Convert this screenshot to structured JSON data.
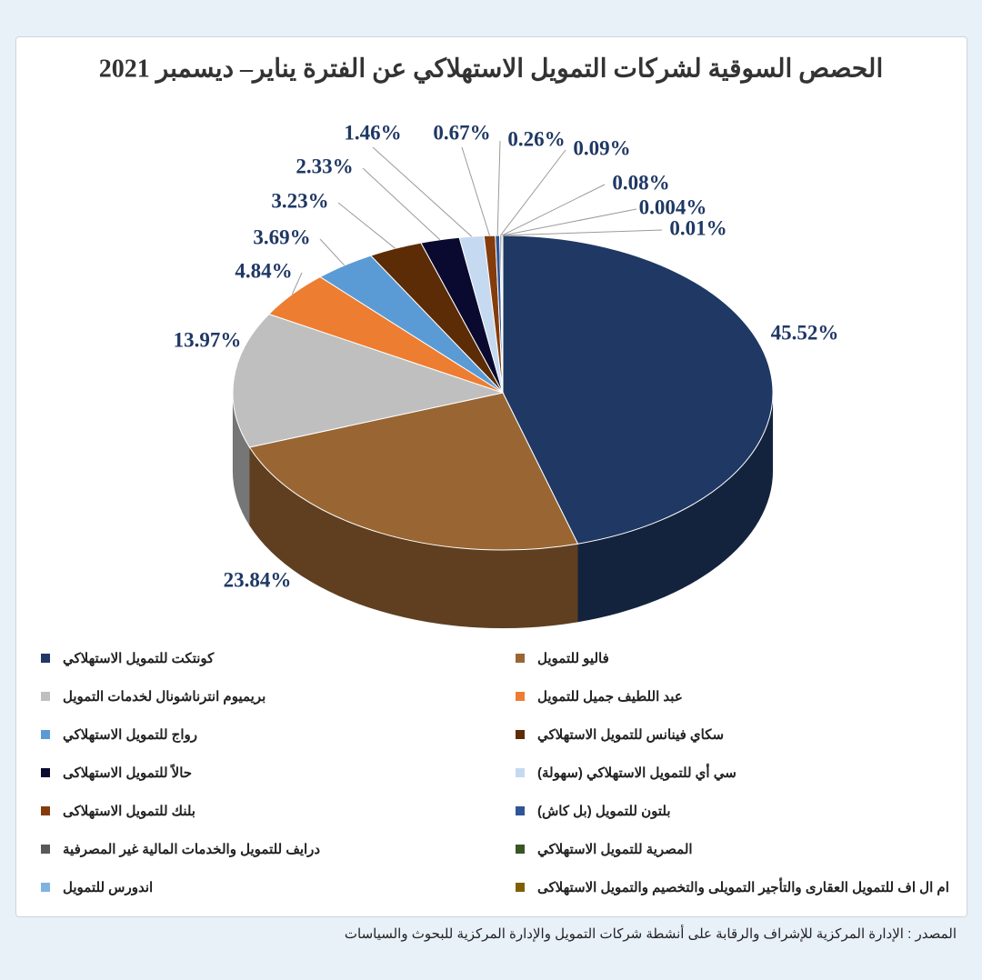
{
  "chart_data": {
    "type": "pie3d",
    "title": "الحصص السوقية لشركات التمويل الاستهلاكي عن الفترة يناير– ديسمبر 2021",
    "categories": [
      "كونتكت للتمويل الاستهلاكي",
      "فاليو للتمويل",
      "بريميوم انترناشونال لخدمات التمويل",
      "عبد اللطيف جميل للتمويل",
      "رواج للتمويل الاستهلاكي",
      "سكاي فينانس للتمويل الاستهلاكي",
      "حالاً للتمويل الاستهلاكى",
      "سي أي للتمويل الاستهلاكي (سهولة)",
      "بلنك للتمويل الاستهلاكى",
      "بلتون للتمويل (بل كاش)",
      "درايف للتمويل والخدمات المالية غير المصرفية",
      "المصرية للتمويل الاستهلاكي",
      "اندورس للتمويل",
      "ام ال اف للتمويل العقارى والتأجير التمويلى والتخصيم والتمويل الاستهلاكى"
    ],
    "values": [
      45.52,
      23.84,
      13.97,
      4.84,
      3.69,
      3.23,
      2.33,
      1.46,
      0.67,
      0.26,
      0.09,
      0.08,
      0.004,
      0.01
    ],
    "value_labels": [
      "45.52%",
      "23.84%",
      "13.97%",
      "4.84%",
      "3.69%",
      "3.23%",
      "2.33%",
      "1.46%",
      "0.67%",
      "0.26%",
      "0.09%",
      "0.08%",
      "0.004%",
      "0.01%"
    ],
    "colors": [
      "#1f3864",
      "#996633",
      "#bfbfbf",
      "#ed7d31",
      "#5b9bd5",
      "#5b2c06",
      "#0a0a30",
      "#c5d9f1",
      "#843c0c",
      "#2f5597",
      "#595959",
      "#375623",
      "#7fb2e0",
      "#7f6000"
    ]
  },
  "source": "المصدر : الإدارة المركزية للإشراف والرقابة على أنشطة شركات التمويل والإدارة المركزية للبحوث والسياسات"
}
